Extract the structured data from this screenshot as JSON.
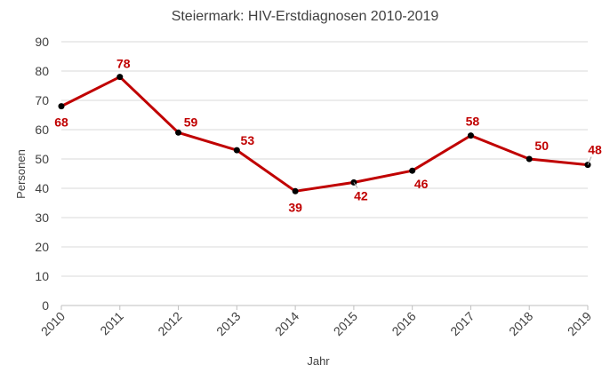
{
  "chart_data": {
    "type": "line",
    "title": "Steiermark: HIV-Erstdiagnosen 2010-2019",
    "xlabel": "Jahr",
    "ylabel": "Personen",
    "categories": [
      "2010",
      "2011",
      "2012",
      "2013",
      "2014",
      "2015",
      "2016",
      "2017",
      "2018",
      "2019"
    ],
    "series": [
      {
        "values": [
          68,
          78,
          59,
          53,
          39,
          42,
          46,
          58,
          50,
          48
        ]
      }
    ],
    "ylim": [
      0,
      90
    ],
    "yticks": [
      0,
      10,
      20,
      30,
      40,
      50,
      60,
      70,
      80,
      90
    ],
    "grid": true,
    "legend": "none",
    "data_labels": true
  },
  "colors": {
    "line": "#c00000",
    "marker": "#000000",
    "label": "#c00000"
  }
}
